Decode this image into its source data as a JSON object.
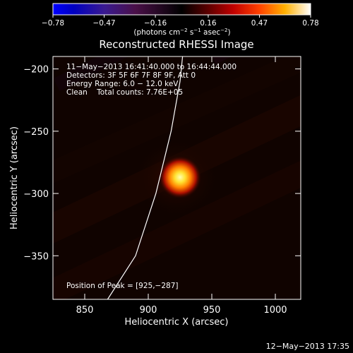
{
  "chart_data": {
    "type": "heatmap",
    "title": "Reconstructed RHESSI Image",
    "xlabel": "Heliocentric X (arcsec)",
    "ylabel": "Heliocentric Y (arcsec)",
    "xlim": [
      825,
      1020
    ],
    "ylim": [
      -385,
      -190
    ],
    "x_ticks": [
      850,
      900,
      950,
      1000
    ],
    "y_ticks": [
      -200,
      -250,
      -300,
      -350
    ],
    "x_tick_labels": [
      "850",
      "900",
      "950",
      "1000"
    ],
    "y_tick_labels": [
      "−200",
      "−250",
      "−300",
      "−350"
    ],
    "colormap": "red-temperature (blue at negative end)",
    "colorbar": {
      "range": [
        -0.78,
        0.78
      ],
      "ticks": [
        -0.78,
        -0.47,
        -0.16,
        0.16,
        0.47,
        0.78
      ],
      "tick_labels": [
        "−0.78",
        "−0.47",
        "−0.16",
        "0.16",
        "0.47",
        "0.78"
      ],
      "unit_label": "(photons cm^-2 s^-1 asec^-2)"
    },
    "annotations": [
      "11−May−2013 16:41:40.000 to 16:44:44.000",
      "Detectors: 3F 5F 6F 7F 8F 9F, Att 0",
      "Energy Range: 6.0 − 12.0 keV",
      "Clean    Total counts: 7.76E+05"
    ],
    "peak_label": "Position of Peak = [925,−287]",
    "peak": {
      "x": 925,
      "y": -287,
      "value": 0.78
    },
    "limb_curve": [
      [
        868,
        -385
      ],
      [
        890,
        -350
      ],
      [
        906,
        -300
      ],
      [
        918,
        -250
      ],
      [
        925,
        -210
      ],
      [
        927,
        -190
      ]
    ]
  },
  "footer": {
    "timestamp": "12−May−2013 17:35"
  },
  "colors": {
    "background": "#000000",
    "axes": "#ffffff",
    "limb": "#ffffff"
  }
}
